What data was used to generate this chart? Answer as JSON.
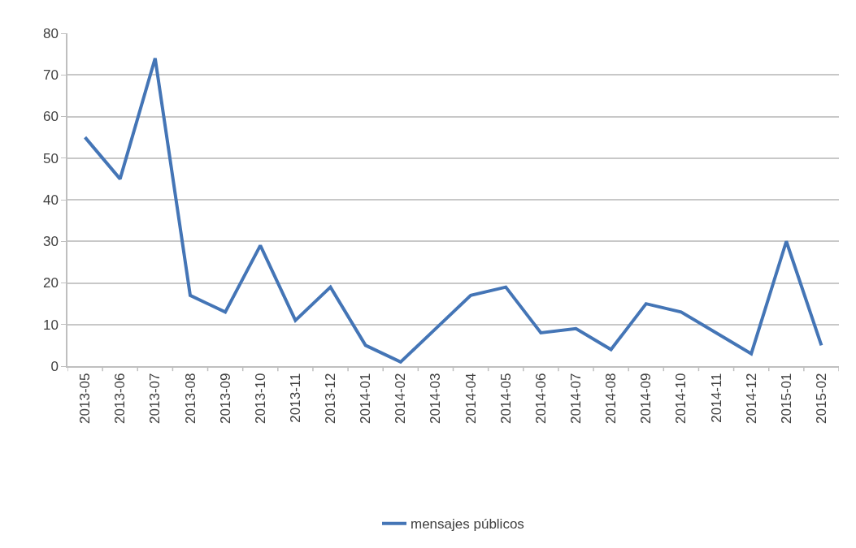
{
  "chart_data": {
    "type": "line",
    "categories": [
      "2013-05",
      "2013-06",
      "2013-07",
      "2013-08",
      "2013-09",
      "2013-10",
      "2013-11",
      "2013-12",
      "2014-01",
      "2014-02",
      "2014-03",
      "2014-04",
      "2014-05",
      "2014-06",
      "2014-07",
      "2014-08",
      "2014-09",
      "2014-10",
      "2014-11",
      "2014-12",
      "2015-01",
      "2015-02"
    ],
    "series": [
      {
        "name": "mensajes públicos",
        "color": "#4475b6",
        "values": [
          55,
          45,
          74,
          17,
          13,
          29,
          11,
          19,
          5,
          1,
          9,
          17,
          19,
          8,
          9,
          4,
          15,
          13,
          8,
          3,
          30,
          5
        ]
      }
    ],
    "ylim": [
      0,
      80
    ],
    "yticks": [
      0,
      10,
      20,
      30,
      40,
      50,
      60,
      70,
      80
    ],
    "grid": "y",
    "legend": "bottom",
    "line_style": "solid"
  }
}
